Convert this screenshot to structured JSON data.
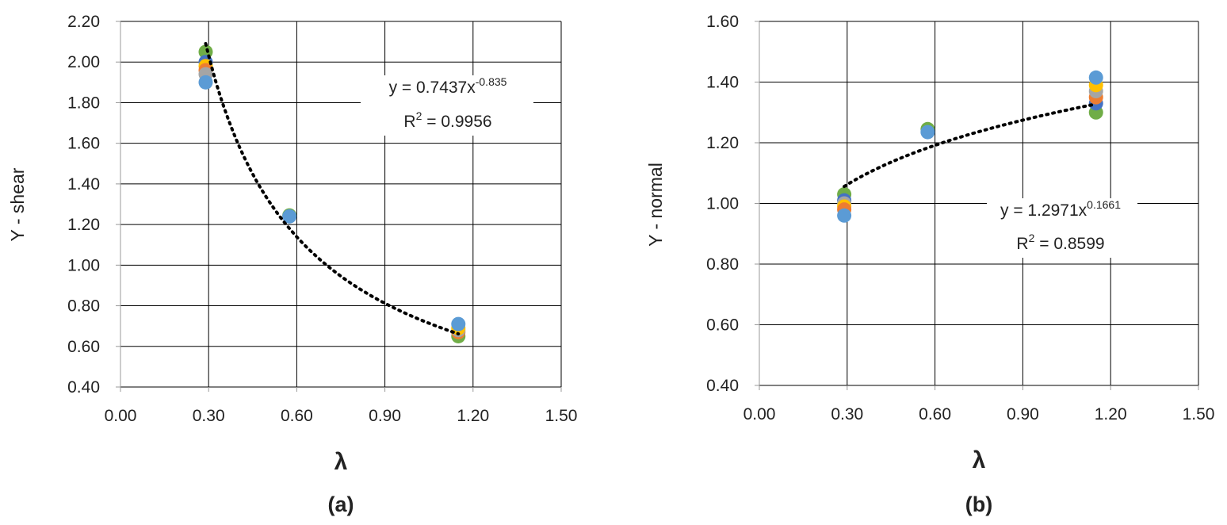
{
  "chart_data": [
    {
      "type": "scatter",
      "panel_label": "(a)",
      "xlabel": "λ",
      "ylabel": "Y - shear",
      "xlim": [
        0.0,
        1.5
      ],
      "ylim": [
        0.4,
        2.2
      ],
      "xticks": [
        "0.00",
        "0.30",
        "0.60",
        "0.90",
        "1.20",
        "1.50"
      ],
      "yticks": [
        "0.40",
        "0.60",
        "0.80",
        "1.00",
        "1.20",
        "1.40",
        "1.60",
        "1.80",
        "2.00",
        "2.20"
      ],
      "grid": true,
      "points": [
        {
          "x": 0.29,
          "y": 2.05,
          "color": "#70ad47"
        },
        {
          "x": 0.29,
          "y": 2.0,
          "color": "#4472c4"
        },
        {
          "x": 0.29,
          "y": 1.98,
          "color": "#ffc000"
        },
        {
          "x": 0.29,
          "y": 1.96,
          "color": "#ed7d31"
        },
        {
          "x": 0.29,
          "y": 1.94,
          "color": "#a5a5a5"
        },
        {
          "x": 0.29,
          "y": 1.9,
          "color": "#5b9bd5"
        },
        {
          "x": 0.575,
          "y": 1.245,
          "color": "#70ad47"
        },
        {
          "x": 0.575,
          "y": 1.24,
          "color": "#5b9bd5"
        },
        {
          "x": 1.15,
          "y": 0.65,
          "color": "#70ad47"
        },
        {
          "x": 1.15,
          "y": 0.67,
          "color": "#ed7d31"
        },
        {
          "x": 1.15,
          "y": 0.68,
          "color": "#a5a5a5"
        },
        {
          "x": 1.15,
          "y": 0.69,
          "color": "#ffc000"
        },
        {
          "x": 1.15,
          "y": 0.71,
          "color": "#5b9bd5"
        }
      ],
      "trendline": {
        "type": "power",
        "a": 0.7437,
        "b": -0.835,
        "x_range": [
          0.29,
          1.15
        ]
      },
      "equation": {
        "main": "y = 0.7437x",
        "exponent": "-0.835",
        "r2_prefix": "R",
        "r2_sup": "2",
        "r2_value": " = 0.9956"
      }
    },
    {
      "type": "scatter",
      "panel_label": "(b)",
      "xlabel": "λ",
      "ylabel": "Y - normal",
      "xlim": [
        0.0,
        1.5
      ],
      "ylim": [
        0.4,
        1.6
      ],
      "xticks": [
        "0.00",
        "0.30",
        "0.60",
        "0.90",
        "1.20",
        "1.50"
      ],
      "yticks": [
        "0.40",
        "0.60",
        "0.80",
        "1.00",
        "1.20",
        "1.40",
        "1.60"
      ],
      "grid": true,
      "points": [
        {
          "x": 0.29,
          "y": 1.03,
          "color": "#70ad47"
        },
        {
          "x": 0.29,
          "y": 1.01,
          "color": "#4472c4"
        },
        {
          "x": 0.29,
          "y": 1.0,
          "color": "#a5a5a5"
        },
        {
          "x": 0.29,
          "y": 0.99,
          "color": "#ffc000"
        },
        {
          "x": 0.29,
          "y": 0.98,
          "color": "#ed7d31"
        },
        {
          "x": 0.29,
          "y": 0.96,
          "color": "#5b9bd5"
        },
        {
          "x": 0.575,
          "y": 1.245,
          "color": "#70ad47"
        },
        {
          "x": 0.575,
          "y": 1.235,
          "color": "#5b9bd5"
        },
        {
          "x": 1.15,
          "y": 1.3,
          "color": "#70ad47"
        },
        {
          "x": 1.15,
          "y": 1.33,
          "color": "#4472c4"
        },
        {
          "x": 1.15,
          "y": 1.35,
          "color": "#ed7d31"
        },
        {
          "x": 1.15,
          "y": 1.37,
          "color": "#a5a5a5"
        },
        {
          "x": 1.15,
          "y": 1.39,
          "color": "#ffc000"
        },
        {
          "x": 1.15,
          "y": 1.415,
          "color": "#5b9bd5"
        }
      ],
      "trendline": {
        "type": "power",
        "a": 1.2971,
        "b": 0.1661,
        "x_range": [
          0.29,
          1.15
        ]
      },
      "equation": {
        "main": "y = 1.2971x",
        "exponent": "0.1661",
        "r2_prefix": "R",
        "r2_sup": "2",
        "r2_value": " = 0.8599"
      }
    }
  ]
}
